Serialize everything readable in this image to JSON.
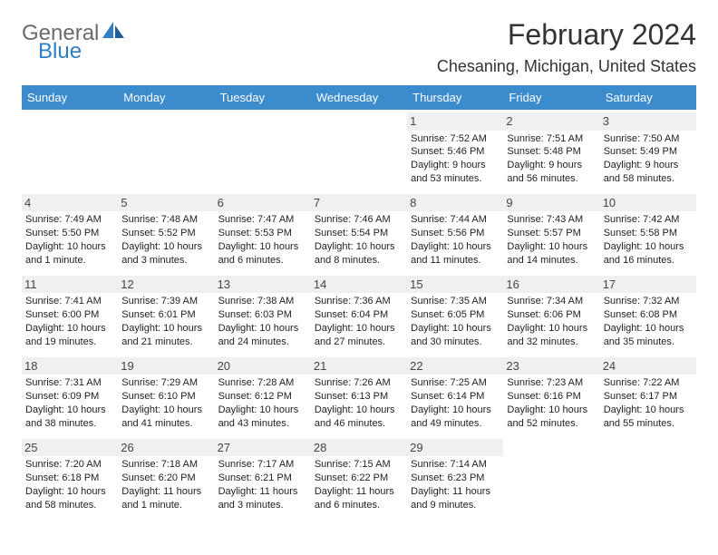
{
  "logo": {
    "line1": "General",
    "line2": "Blue"
  },
  "header": {
    "month_title": "February 2024",
    "location": "Chesaning, Michigan, United States"
  },
  "colors": {
    "header_bg": "#3b8bcd",
    "row_sep": "#2f5f87",
    "daynum_bg": "#eef0f1",
    "logo_gray": "#6b6b6b",
    "logo_blue": "#2f7fc2"
  },
  "day_headers": [
    "Sunday",
    "Monday",
    "Tuesday",
    "Wednesday",
    "Thursday",
    "Friday",
    "Saturday"
  ],
  "weeks": [
    [
      null,
      null,
      null,
      null,
      {
        "n": "1",
        "sr": "Sunrise: 7:52 AM",
        "ss": "Sunset: 5:46 PM",
        "d1": "Daylight: 9 hours",
        "d2": "and 53 minutes."
      },
      {
        "n": "2",
        "sr": "Sunrise: 7:51 AM",
        "ss": "Sunset: 5:48 PM",
        "d1": "Daylight: 9 hours",
        "d2": "and 56 minutes."
      },
      {
        "n": "3",
        "sr": "Sunrise: 7:50 AM",
        "ss": "Sunset: 5:49 PM",
        "d1": "Daylight: 9 hours",
        "d2": "and 58 minutes."
      }
    ],
    [
      {
        "n": "4",
        "sr": "Sunrise: 7:49 AM",
        "ss": "Sunset: 5:50 PM",
        "d1": "Daylight: 10 hours",
        "d2": "and 1 minute."
      },
      {
        "n": "5",
        "sr": "Sunrise: 7:48 AM",
        "ss": "Sunset: 5:52 PM",
        "d1": "Daylight: 10 hours",
        "d2": "and 3 minutes."
      },
      {
        "n": "6",
        "sr": "Sunrise: 7:47 AM",
        "ss": "Sunset: 5:53 PM",
        "d1": "Daylight: 10 hours",
        "d2": "and 6 minutes."
      },
      {
        "n": "7",
        "sr": "Sunrise: 7:46 AM",
        "ss": "Sunset: 5:54 PM",
        "d1": "Daylight: 10 hours",
        "d2": "and 8 minutes."
      },
      {
        "n": "8",
        "sr": "Sunrise: 7:44 AM",
        "ss": "Sunset: 5:56 PM",
        "d1": "Daylight: 10 hours",
        "d2": "and 11 minutes."
      },
      {
        "n": "9",
        "sr": "Sunrise: 7:43 AM",
        "ss": "Sunset: 5:57 PM",
        "d1": "Daylight: 10 hours",
        "d2": "and 14 minutes."
      },
      {
        "n": "10",
        "sr": "Sunrise: 7:42 AM",
        "ss": "Sunset: 5:58 PM",
        "d1": "Daylight: 10 hours",
        "d2": "and 16 minutes."
      }
    ],
    [
      {
        "n": "11",
        "sr": "Sunrise: 7:41 AM",
        "ss": "Sunset: 6:00 PM",
        "d1": "Daylight: 10 hours",
        "d2": "and 19 minutes."
      },
      {
        "n": "12",
        "sr": "Sunrise: 7:39 AM",
        "ss": "Sunset: 6:01 PM",
        "d1": "Daylight: 10 hours",
        "d2": "and 21 minutes."
      },
      {
        "n": "13",
        "sr": "Sunrise: 7:38 AM",
        "ss": "Sunset: 6:03 PM",
        "d1": "Daylight: 10 hours",
        "d2": "and 24 minutes."
      },
      {
        "n": "14",
        "sr": "Sunrise: 7:36 AM",
        "ss": "Sunset: 6:04 PM",
        "d1": "Daylight: 10 hours",
        "d2": "and 27 minutes."
      },
      {
        "n": "15",
        "sr": "Sunrise: 7:35 AM",
        "ss": "Sunset: 6:05 PM",
        "d1": "Daylight: 10 hours",
        "d2": "and 30 minutes."
      },
      {
        "n": "16",
        "sr": "Sunrise: 7:34 AM",
        "ss": "Sunset: 6:06 PM",
        "d1": "Daylight: 10 hours",
        "d2": "and 32 minutes."
      },
      {
        "n": "17",
        "sr": "Sunrise: 7:32 AM",
        "ss": "Sunset: 6:08 PM",
        "d1": "Daylight: 10 hours",
        "d2": "and 35 minutes."
      }
    ],
    [
      {
        "n": "18",
        "sr": "Sunrise: 7:31 AM",
        "ss": "Sunset: 6:09 PM",
        "d1": "Daylight: 10 hours",
        "d2": "and 38 minutes."
      },
      {
        "n": "19",
        "sr": "Sunrise: 7:29 AM",
        "ss": "Sunset: 6:10 PM",
        "d1": "Daylight: 10 hours",
        "d2": "and 41 minutes."
      },
      {
        "n": "20",
        "sr": "Sunrise: 7:28 AM",
        "ss": "Sunset: 6:12 PM",
        "d1": "Daylight: 10 hours",
        "d2": "and 43 minutes."
      },
      {
        "n": "21",
        "sr": "Sunrise: 7:26 AM",
        "ss": "Sunset: 6:13 PM",
        "d1": "Daylight: 10 hours",
        "d2": "and 46 minutes."
      },
      {
        "n": "22",
        "sr": "Sunrise: 7:25 AM",
        "ss": "Sunset: 6:14 PM",
        "d1": "Daylight: 10 hours",
        "d2": "and 49 minutes."
      },
      {
        "n": "23",
        "sr": "Sunrise: 7:23 AM",
        "ss": "Sunset: 6:16 PM",
        "d1": "Daylight: 10 hours",
        "d2": "and 52 minutes."
      },
      {
        "n": "24",
        "sr": "Sunrise: 7:22 AM",
        "ss": "Sunset: 6:17 PM",
        "d1": "Daylight: 10 hours",
        "d2": "and 55 minutes."
      }
    ],
    [
      {
        "n": "25",
        "sr": "Sunrise: 7:20 AM",
        "ss": "Sunset: 6:18 PM",
        "d1": "Daylight: 10 hours",
        "d2": "and 58 minutes."
      },
      {
        "n": "26",
        "sr": "Sunrise: 7:18 AM",
        "ss": "Sunset: 6:20 PM",
        "d1": "Daylight: 11 hours",
        "d2": "and 1 minute."
      },
      {
        "n": "27",
        "sr": "Sunrise: 7:17 AM",
        "ss": "Sunset: 6:21 PM",
        "d1": "Daylight: 11 hours",
        "d2": "and 3 minutes."
      },
      {
        "n": "28",
        "sr": "Sunrise: 7:15 AM",
        "ss": "Sunset: 6:22 PM",
        "d1": "Daylight: 11 hours",
        "d2": "and 6 minutes."
      },
      {
        "n": "29",
        "sr": "Sunrise: 7:14 AM",
        "ss": "Sunset: 6:23 PM",
        "d1": "Daylight: 11 hours",
        "d2": "and 9 minutes."
      },
      null,
      null
    ]
  ]
}
